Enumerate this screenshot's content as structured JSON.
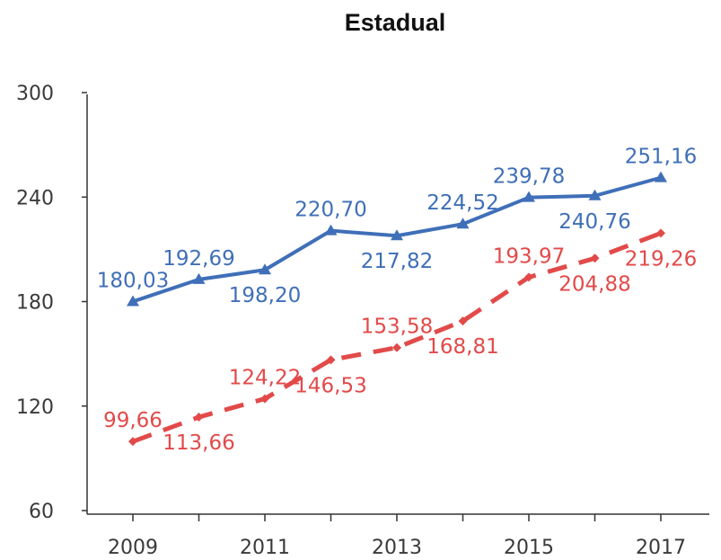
{
  "chart_data": {
    "type": "line",
    "title": "Estadual",
    "xlabel": "",
    "ylabel": "",
    "x": [
      2009,
      2010,
      2011,
      2012,
      2013,
      2014,
      2015,
      2016,
      2017
    ],
    "x_tick_labels": [
      "2009",
      "2011",
      "2013",
      "2015",
      "2017"
    ],
    "y_ticks": [
      60,
      120,
      180,
      240,
      300
    ],
    "y_tick_labels": [
      "60",
      "120",
      "180",
      "240",
      "300"
    ],
    "ylim": [
      60,
      300
    ],
    "grid": false,
    "legend": "none",
    "series": [
      {
        "color": "#3f6fb8",
        "style": "solid",
        "marker": "triangle",
        "values": [
          180.03,
          192.69,
          198.2,
          220.7,
          217.82,
          224.52,
          239.78,
          240.76,
          251.16
        ],
        "labels": [
          "180,03",
          "192,69",
          "198,20",
          "220,70",
          "217,82",
          "224,52",
          "239,78",
          "240,76",
          "251,16"
        ],
        "label_positions": [
          "above",
          "above",
          "below",
          "above",
          "below",
          "above",
          "above",
          "below",
          "above"
        ]
      },
      {
        "color": "#e24a4a",
        "style": "dashed",
        "marker": "diamond",
        "values": [
          99.66,
          113.66,
          124.22,
          146.53,
          153.58,
          168.81,
          193.97,
          204.88,
          219.26
        ],
        "labels": [
          "99,66",
          "113,66",
          "124,22",
          "146,53",
          "153,58",
          "168,81",
          "193,97",
          "204,88",
          "219,26"
        ],
        "label_positions": [
          "above",
          "below",
          "above",
          "below",
          "above",
          "below",
          "above",
          "below",
          "below"
        ]
      }
    ]
  }
}
